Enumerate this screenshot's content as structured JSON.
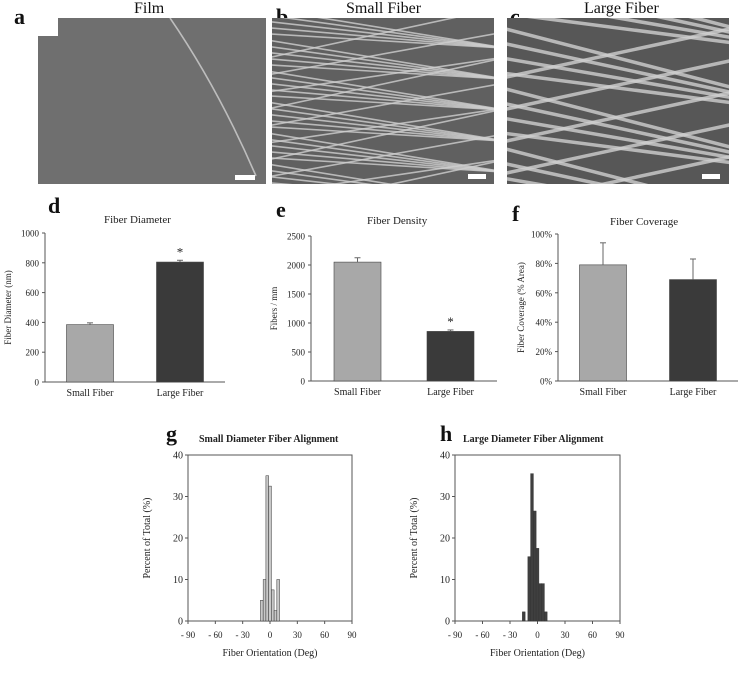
{
  "panels": {
    "a": {
      "letter": "a",
      "title": "Film"
    },
    "b": {
      "letter": "b",
      "title": "Small Fiber"
    },
    "c": {
      "letter": "c",
      "title": "Large Fiber"
    },
    "d": {
      "letter": "d"
    },
    "e": {
      "letter": "e"
    },
    "f": {
      "letter": "f"
    },
    "g": {
      "letter": "g"
    },
    "h": {
      "letter": "h"
    }
  },
  "chart_data": [
    {
      "id": "d",
      "type": "bar",
      "title": "Fiber Diameter",
      "ylabel": "Fiber Diameter (nm)",
      "xlabel": "",
      "categories": [
        "Small Fiber",
        "Large Fiber"
      ],
      "values": [
        385,
        805
      ],
      "errors": [
        12,
        12
      ],
      "ylim": [
        0,
        1000
      ],
      "yticks": [
        "0",
        "200",
        "400",
        "600",
        "800",
        "1000"
      ],
      "annotations": [
        "",
        "*"
      ],
      "colors": [
        "#a8a8a8",
        "#3a3a3a"
      ]
    },
    {
      "id": "e",
      "type": "bar",
      "title": "Fiber Density",
      "ylabel": "Fibers / mm",
      "xlabel": "",
      "categories": [
        "Small Fiber",
        "Large Fiber"
      ],
      "values": [
        2050,
        855
      ],
      "errors": [
        75,
        25
      ],
      "ylim": [
        0,
        2500
      ],
      "yticks": [
        "0",
        "500",
        "1000",
        "1500",
        "2000",
        "2500"
      ],
      "annotations": [
        "",
        "*"
      ],
      "colors": [
        "#a8a8a8",
        "#3a3a3a"
      ]
    },
    {
      "id": "f",
      "type": "bar",
      "title": "Fiber Coverage",
      "ylabel": "Fiber Coverage (% Area)",
      "xlabel": "",
      "categories": [
        "Small Fiber",
        "Large Fiber"
      ],
      "values": [
        0.79,
        0.69
      ],
      "errors": [
        0.15,
        0.14
      ],
      "ylim": [
        0,
        1.0
      ],
      "yticks": [
        "0%",
        "20%",
        "40%",
        "60%",
        "80%",
        "100%"
      ],
      "annotations": [
        "",
        ""
      ],
      "colors": [
        "#a8a8a8",
        "#3a3a3a"
      ]
    },
    {
      "id": "g",
      "type": "bar",
      "title": "Small Diameter Fiber Alignment",
      "ylabel": "Percent of Total (%)",
      "xlabel": "Fiber Orientation (Deg)",
      "bin_centers": [
        -9,
        -6,
        -3,
        0,
        3,
        6,
        9
      ],
      "values": [
        5,
        10,
        35,
        32.5,
        7.5,
        2.5,
        10
      ],
      "xlim": [
        -90,
        90
      ],
      "ylim": [
        0,
        40
      ],
      "xticks": [
        "- 90",
        "- 60",
        "- 30",
        "0",
        "30",
        "60",
        "90"
      ],
      "yticks": [
        "0",
        "10",
        "20",
        "30",
        "40"
      ],
      "color": "#c8c8c8"
    },
    {
      "id": "h",
      "type": "bar",
      "title": "Large Diameter Fiber Alignment",
      "ylabel": "Percent of Total (%)",
      "xlabel": "Fiber Orientation (Deg)",
      "bin_centers": [
        -15,
        -9,
        -6,
        -3,
        0,
        3,
        6,
        9,
        12
      ],
      "values": [
        2.2,
        15.5,
        35.5,
        26.5,
        17.5,
        9,
        9,
        2.2,
        0
      ],
      "xlim": [
        -90,
        90
      ],
      "ylim": [
        0,
        40
      ],
      "xticks": [
        "- 90",
        "- 60",
        "- 30",
        "0",
        "30",
        "60",
        "90"
      ],
      "yticks": [
        "0",
        "10",
        "20",
        "30",
        "40"
      ],
      "color": "#3f3f3f"
    }
  ]
}
